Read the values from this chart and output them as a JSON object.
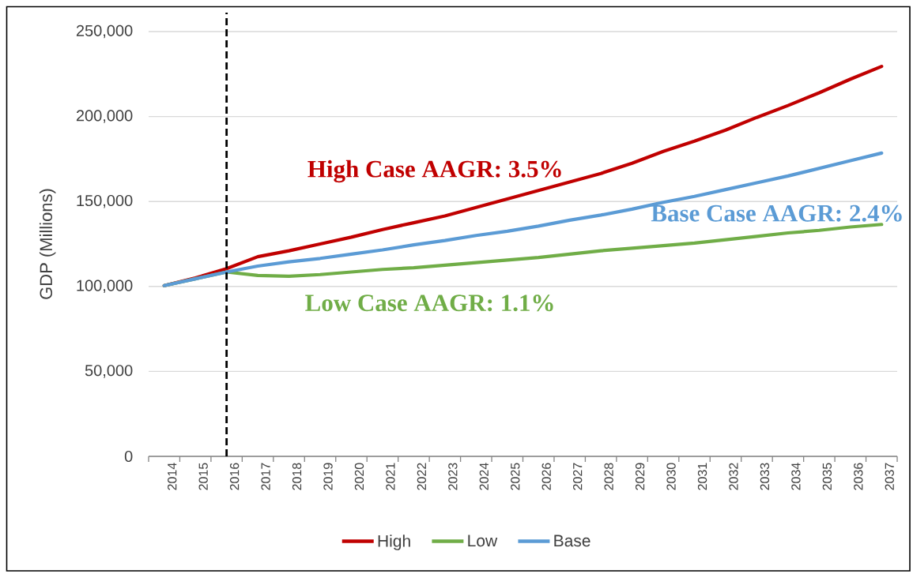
{
  "chart_data": {
    "type": "line",
    "ylabel": "GDP (Millions)",
    "categories": [
      "2014",
      "2015",
      "2016",
      "2017",
      "2018",
      "2019",
      "2020",
      "2021",
      "2022",
      "2023",
      "2024",
      "2025",
      "2026",
      "2027",
      "2028",
      "2029",
      "2030",
      "2031",
      "2032",
      "2033",
      "2034",
      "2035",
      "2036",
      "2037"
    ],
    "series": [
      {
        "name": "High",
        "color": "#c00000",
        "values": [
          100500,
          105000,
          110500,
          117500,
          121000,
          125000,
          129000,
          133500,
          137500,
          141500,
          146500,
          151500,
          156500,
          161500,
          166500,
          172500,
          179500,
          185500,
          192000,
          199500,
          206500,
          214000,
          222000,
          229500
        ]
      },
      {
        "name": "Low",
        "color": "#70ad47",
        "values": [
          100500,
          104500,
          108500,
          106500,
          106000,
          107000,
          108500,
          110000,
          111000,
          112500,
          114000,
          115500,
          117000,
          119000,
          121000,
          122500,
          124000,
          125500,
          127500,
          129500,
          131500,
          133000,
          135000,
          136500
        ]
      },
      {
        "name": "Base",
        "color": "#5b9bd5",
        "values": [
          100500,
          104500,
          108500,
          112000,
          114500,
          116500,
          119000,
          121500,
          124500,
          127000,
          130000,
          132500,
          135500,
          139000,
          142000,
          145500,
          149500,
          153000,
          157000,
          161000,
          165000,
          169500,
          174000,
          178500
        ]
      }
    ],
    "ylim": [
      0,
      250000
    ],
    "yticks": [
      0,
      {
        "value": 50000,
        "label": "50,000"
      },
      {
        "value": 100000,
        "label": "100,000"
      },
      {
        "value": 150000,
        "label": "150,000"
      },
      {
        "value": 200000,
        "label": "200,000"
      },
      {
        "value": 250000,
        "label": "250,000"
      }
    ],
    "grid": "y",
    "legend": "bottom",
    "line_style": "solid",
    "ref_lines": [
      {
        "axis": "x",
        "value": "2016",
        "color": "#000000",
        "line_style": "dashed"
      }
    ],
    "annotations": [
      "High Case AAGR: 3.5%",
      "Low Case AAGR: 1.1%",
      "Base Case AAGR: 2.4%"
    ]
  }
}
